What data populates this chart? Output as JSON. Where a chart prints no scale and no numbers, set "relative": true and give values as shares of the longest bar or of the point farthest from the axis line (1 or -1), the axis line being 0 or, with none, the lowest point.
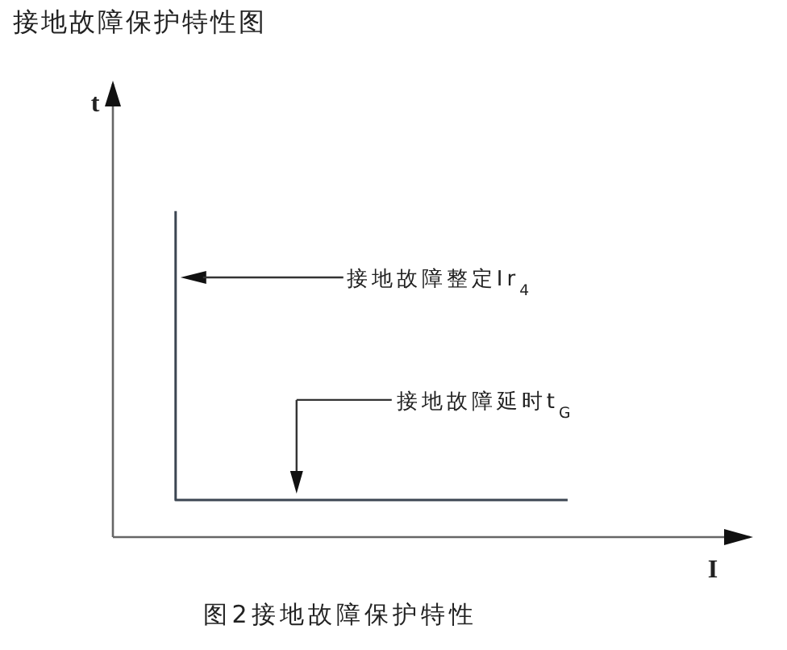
{
  "chart_data": {
    "type": "step",
    "title": "接地故障保护特性图",
    "xlabel": "I",
    "ylabel": "t",
    "relative": true,
    "categories": [
      null,
      null
    ],
    "series": [
      {
        "color": "#3c4652",
        "values": [
          1,
          0.114
        ]
      }
    ],
    "annotations": [
      "接地故障整定Ir$_{4}$",
      "接地故障延时t$_{G}$",
      "图2接地故障保护特性"
    ]
  }
}
